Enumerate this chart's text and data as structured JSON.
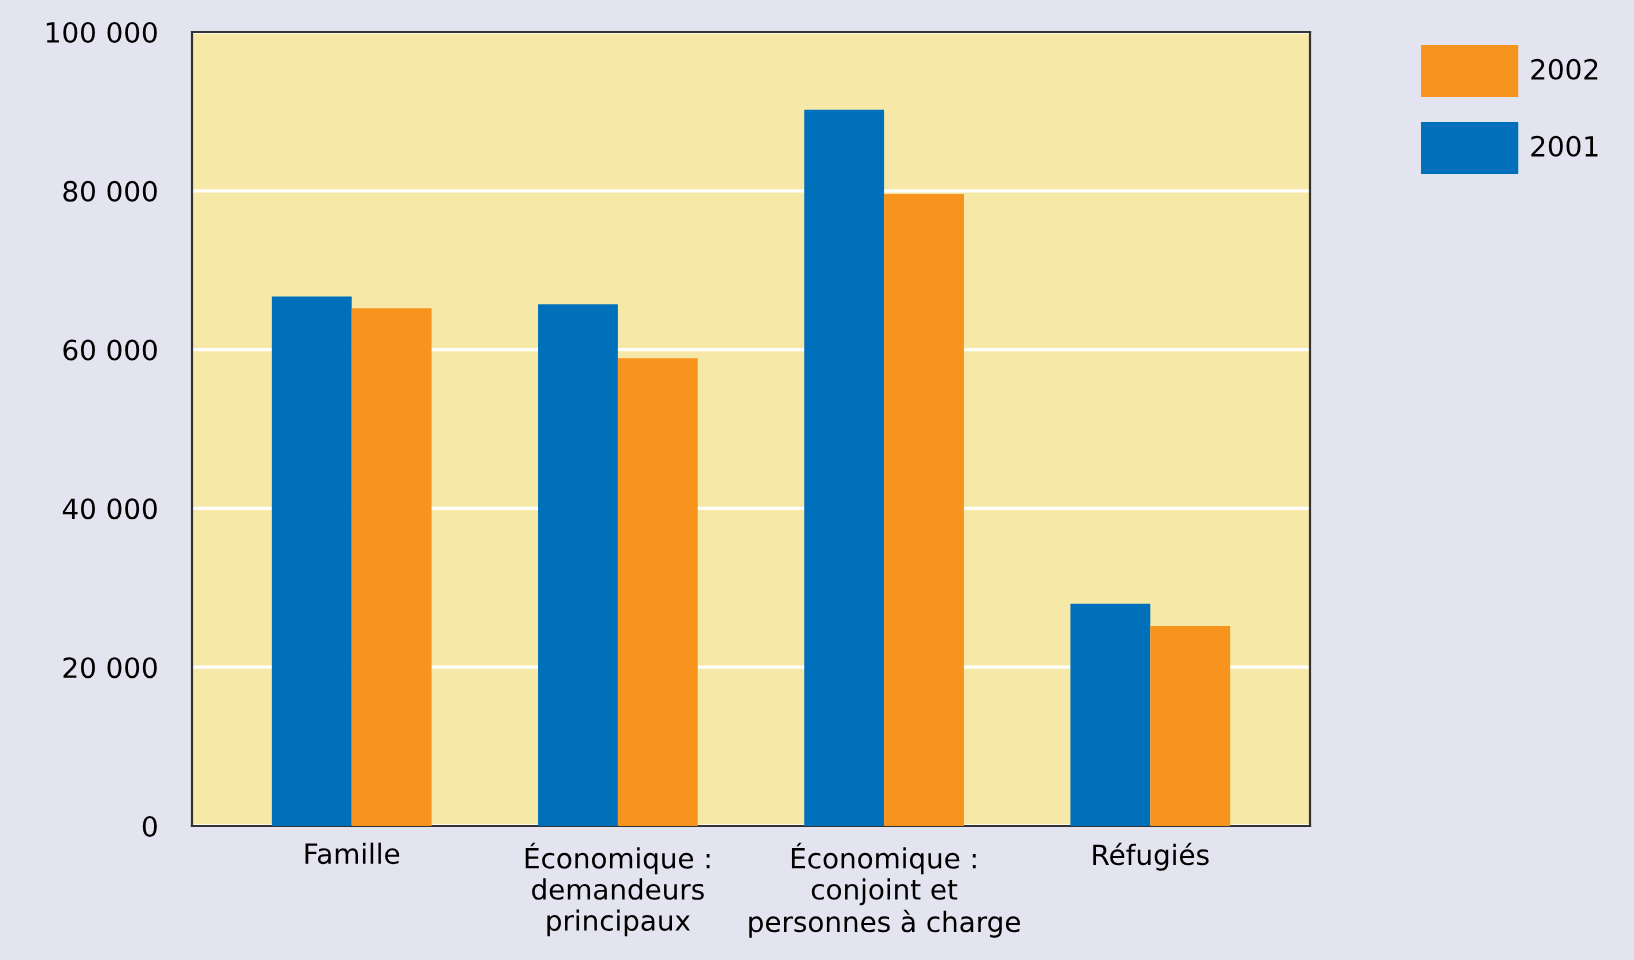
{
  "chart_data": {
    "type": "bar",
    "categories": [
      "Famille",
      "Économique :\ndemandeurs\nprincipaux",
      "Économique :\nconjoint et\npersonnes à charge",
      "Réfugiés"
    ],
    "series": [
      {
        "name": "2001",
        "color": "#0070bb",
        "values": [
          66700,
          65700,
          90200,
          28000
        ]
      },
      {
        "name": "2002",
        "color": "#f7941d",
        "values": [
          65200,
          58900,
          79600,
          25200
        ]
      }
    ],
    "ylim": [
      0,
      100000
    ],
    "yticks": [
      {
        "value": 0,
        "label": "0"
      },
      {
        "value": 20000,
        "label": "20 000"
      },
      {
        "value": 40000,
        "label": "40 000"
      },
      {
        "value": 60000,
        "label": "60 000"
      },
      {
        "value": 80000,
        "label": "80 000"
      },
      {
        "value": 100000,
        "label": "100 000"
      }
    ],
    "grid": "y",
    "legend": "top right"
  }
}
